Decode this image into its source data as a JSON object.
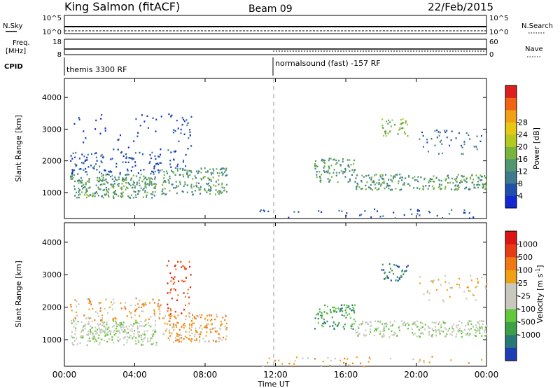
{
  "header": {
    "station": "King Salmon (fitACF)",
    "beam": "Beam 09",
    "date": "22/Feb/2015"
  },
  "strips": {
    "nsky_label": "N.Sky",
    "nsky_ticks": [
      "10^5",
      "10^0"
    ],
    "nsearch_label": "N.Search",
    "nsearch_ticks": [
      "10^5",
      "10^0"
    ],
    "freq_label_top": "Freq.",
    "freq_label_unit": "[MHz]",
    "freq_ticks": [
      "18",
      "8"
    ],
    "nave_label": "Nave",
    "nave_ticks": [
      "60",
      "0"
    ],
    "cpid_label": "CPID",
    "cpid_mode_1": "themis 3300 RF",
    "cpid_mode_2": "normalsound (fast) -157 RF"
  },
  "chart_data": {
    "type": "heatmap",
    "x_axis": {
      "label": "Time UT",
      "ticks": [
        "00:00",
        "04:00",
        "08:00",
        "12:00",
        "16:00",
        "20:00",
        "00:00"
      ],
      "range_hours": [
        0,
        24
      ],
      "mode_change_hour": 12
    },
    "panels": [
      {
        "name": "power",
        "ylabel": "Slant Range [km]",
        "yticks": [
          "1000",
          "2000",
          "3000",
          "4000"
        ],
        "ylim": [
          180,
          4600
        ],
        "colorbar": {
          "label": "Power [dB]",
          "ticks": [
            "4",
            "8",
            "12",
            "16",
            "20",
            "24",
            "28"
          ],
          "colors": [
            "#1428d2",
            "#1e50aa",
            "#3c7a8c",
            "#50966e",
            "#78b43c",
            "#b4c81e",
            "#e6c814",
            "#f0a014",
            "#f06414",
            "#dc1e1e"
          ]
        },
        "scatter_regions": [
          {
            "t": [
              0.3,
              5.2
            ],
            "r": [
              850,
              1600
            ],
            "density": 0.75,
            "level": 3
          },
          {
            "t": [
              0.3,
              5.5
            ],
            "r": [
              1600,
              2300
            ],
            "density": 0.35,
            "level": 1
          },
          {
            "t": [
              0.5,
              5.5
            ],
            "r": [
              2300,
              3500
            ],
            "density": 0.06,
            "level": 0
          },
          {
            "t": [
              5.5,
              9.2
            ],
            "r": [
              950,
              1800
            ],
            "density": 0.6,
            "level": 3
          },
          {
            "t": [
              5.8,
              7.2
            ],
            "r": [
              1800,
              3500
            ],
            "density": 0.2,
            "level": 1
          },
          {
            "t": [
              14.2,
              16.5
            ],
            "r": [
              1350,
              2100
            ],
            "density": 0.55,
            "level": 3
          },
          {
            "t": [
              16.5,
              24.0
            ],
            "r": [
              1100,
              1600
            ],
            "density": 0.65,
            "level": 3
          },
          {
            "t": [
              18.0,
              19.5
            ],
            "r": [
              2800,
              3400
            ],
            "density": 0.45,
            "level": 4
          },
          {
            "t": [
              20.0,
              24.0
            ],
            "r": [
              2200,
              3000
            ],
            "density": 0.15,
            "level": 2
          },
          {
            "t": [
              11.0,
              24.0
            ],
            "r": [
              200,
              500
            ],
            "density": 0.12,
            "level": 1
          }
        ]
      },
      {
        "name": "velocity",
        "ylabel": "Slant Range [km]",
        "yticks": [
          "1000",
          "2000",
          "3000",
          "4000"
        ],
        "ylim": [
          180,
          4600
        ],
        "colorbar": {
          "label": "Velocity [m s-1]",
          "ticks": [
            "1000",
            "500",
            "100",
            "25",
            "-25",
            "-100",
            "-500",
            "-1000"
          ],
          "colors": [
            "#1e3cb4",
            "#287878",
            "#3ca046",
            "#64c83c",
            "#c8c8be",
            "#c8c8be",
            "#f0a014",
            "#f07814",
            "#e63c14",
            "#dc1414"
          ]
        },
        "scatter_regions": [
          {
            "t": [
              0.3,
              5.2
            ],
            "r": [
              850,
              1600
            ],
            "density": 0.75,
            "level": 4
          },
          {
            "t": [
              0.3,
              5.5
            ],
            "r": [
              1600,
              2300
            ],
            "density": 0.3,
            "level": 6
          },
          {
            "t": [
              5.5,
              9.2
            ],
            "r": [
              950,
              1800
            ],
            "density": 0.6,
            "level": 6
          },
          {
            "t": [
              5.8,
              7.2
            ],
            "r": [
              1800,
              3500
            ],
            "density": 0.25,
            "level": 8
          },
          {
            "t": [
              14.2,
              16.5
            ],
            "r": [
              1350,
              2100
            ],
            "density": 0.55,
            "level": 2
          },
          {
            "t": [
              16.5,
              24.0
            ],
            "r": [
              1100,
              1600
            ],
            "density": 0.65,
            "level": 4
          },
          {
            "t": [
              18.0,
              19.5
            ],
            "r": [
              2800,
              3400
            ],
            "density": 0.45,
            "level": 1
          },
          {
            "t": [
              20.0,
              24.0
            ],
            "r": [
              2200,
              3000
            ],
            "density": 0.15,
            "level": 5
          },
          {
            "t": [
              11.0,
              24.0
            ],
            "r": [
              200,
              500
            ],
            "density": 0.12,
            "level": 6
          }
        ]
      }
    ]
  }
}
